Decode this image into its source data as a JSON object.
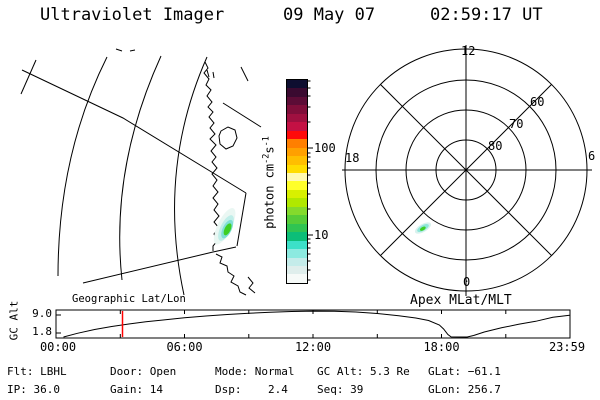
{
  "title": {
    "app": "Ultraviolet Imager",
    "date": "09 May 07",
    "time": "02:59:17 UT"
  },
  "colorbar": {
    "unit_pre": "photon cm",
    "unit_sup1": "-2",
    "unit_mid": "s",
    "unit_sup2": "-1",
    "tick_100": "100",
    "tick_10": "10",
    "colors": [
      "#0e0e30",
      "#3a0a30",
      "#5c0c36",
      "#800e3a",
      "#a01040",
      "#c41144",
      "#ff0a0a",
      "#ff7f00",
      "#ffa000",
      "#ffbe00",
      "#ffdc00",
      "#fff9b0",
      "#ffff2a",
      "#d8f000",
      "#b0e800",
      "#84da2c",
      "#56cc38",
      "#30c452",
      "#0cbe78",
      "#3ce0c8",
      "#8ceae0",
      "#c4ecea",
      "#dfeeec",
      "#f6faf8"
    ]
  },
  "map_panel": {
    "label": "Geographic Lat/Lon"
  },
  "polar_panel": {
    "label": "Apex MLat/MLT",
    "mlt_top": "12",
    "mlt_left": "18",
    "mlt_right": "6",
    "mlt_bottom": "0",
    "ring_60": "60",
    "ring_70": "70",
    "ring_80": "80"
  },
  "gc_plot": {
    "ylabel": "GC Alt",
    "ytick_top": "9.0",
    "ytick_bottom": "1.8",
    "xticks": [
      "00:00",
      "06:00",
      "12:00",
      "18:00",
      "23:59"
    ],
    "marker_color": "#ff0000"
  },
  "footer": {
    "row1": [
      "Flt: LBHL",
      "Door: Open",
      "Mode: Normal",
      "GC Alt: 5.3 Re",
      "GLat: −61.1"
    ],
    "row2": [
      "IP: 36.0",
      "Gain: 14",
      "Dsp:    2.4",
      "Seq: 39",
      "GLon: 256.7"
    ]
  },
  "chart_data": [
    {
      "type": "line",
      "name": "gc-altitude-vs-time",
      "title": "GC Alt",
      "xlabel": "UT",
      "ylabel": "GC Alt (Re)",
      "x_range_hours": [
        0,
        24
      ],
      "ytick_values": [
        9.0,
        1.8
      ],
      "xtick_labels": [
        "00:00",
        "06:00",
        "12:00",
        "18:00",
        "23:59"
      ],
      "current_time_marker": {
        "label": "02:59:17 UT",
        "hour": 2.99,
        "color": "#ff0000"
      },
      "points": [
        [
          0.35,
          0.2
        ],
        [
          1.0,
          1.7
        ],
        [
          1.8,
          3.2
        ],
        [
          2.6,
          4.4
        ],
        [
          3.4,
          5.4
        ],
        [
          4.2,
          6.3
        ],
        [
          5.0,
          7.0
        ],
        [
          6.0,
          7.9
        ],
        [
          7.0,
          8.6
        ],
        [
          8.0,
          9.2
        ],
        [
          9.0,
          9.7
        ],
        [
          10.0,
          10.1
        ],
        [
          11.0,
          10.4
        ],
        [
          12.0,
          10.55
        ],
        [
          13.0,
          10.5
        ],
        [
          14.0,
          10.2
        ],
        [
          15.0,
          9.6
        ],
        [
          16.0,
          8.7
        ],
        [
          16.8,
          7.8
        ],
        [
          17.4,
          6.8
        ],
        [
          17.9,
          5.0
        ],
        [
          18.1,
          3.4
        ],
        [
          18.3,
          1.2
        ],
        [
          18.45,
          0.25
        ],
        [
          19.2,
          0.2
        ],
        [
          19.5,
          0.8
        ],
        [
          20.0,
          2.2
        ],
        [
          20.8,
          3.9
        ],
        [
          21.6,
          5.3
        ],
        [
          22.4,
          6.5
        ],
        [
          23.2,
          8.1
        ],
        [
          23.98,
          8.9
        ]
      ]
    },
    {
      "type": "heatmap",
      "name": "intensity-colorbar",
      "label": "photon cm-2 s-1",
      "scale": "log",
      "labeled_ticks": [
        10,
        100
      ],
      "colors_ref": "colorbar.colors"
    },
    {
      "type": "polar",
      "name": "apex-mlat-mlt-grid",
      "rings_mlat": [
        80,
        70,
        60,
        50
      ],
      "spoke_labels_mlt": [
        12,
        18,
        6,
        0
      ],
      "emission_spot": {
        "mlat": -66,
        "mlt": 21.5
      }
    },
    {
      "type": "map",
      "name": "geographic-view",
      "emission_spot": {
        "glat": -61.1,
        "glon": 256.7
      }
    }
  ]
}
